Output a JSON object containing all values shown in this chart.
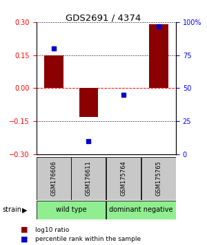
{
  "title": "GDS2691 / 4374",
  "samples": [
    "GSM176606",
    "GSM176611",
    "GSM175764",
    "GSM175765"
  ],
  "log10_ratio": [
    0.15,
    -0.13,
    0.0,
    0.29
  ],
  "percentile_rank": [
    80,
    10,
    45,
    97
  ],
  "groups": [
    {
      "label": "wild type",
      "samples": [
        0,
        1
      ],
      "color": "#90ee90"
    },
    {
      "label": "dominant negative",
      "samples": [
        2,
        3
      ],
      "color": "#90ee90"
    }
  ],
  "ylim_left": [
    -0.3,
    0.3
  ],
  "ylim_right": [
    0,
    100
  ],
  "yticks_left": [
    -0.3,
    -0.15,
    0,
    0.15,
    0.3
  ],
  "yticks_right": [
    0,
    25,
    50,
    75,
    100
  ],
  "bar_color": "#8B0000",
  "dot_color": "#0000CD",
  "background_color": "#ffffff",
  "plot_bg": "#ffffff",
  "legend_bar_label": "log10 ratio",
  "legend_dot_label": "percentile rank within the sample",
  "sample_box_color": "#c8c8c8"
}
